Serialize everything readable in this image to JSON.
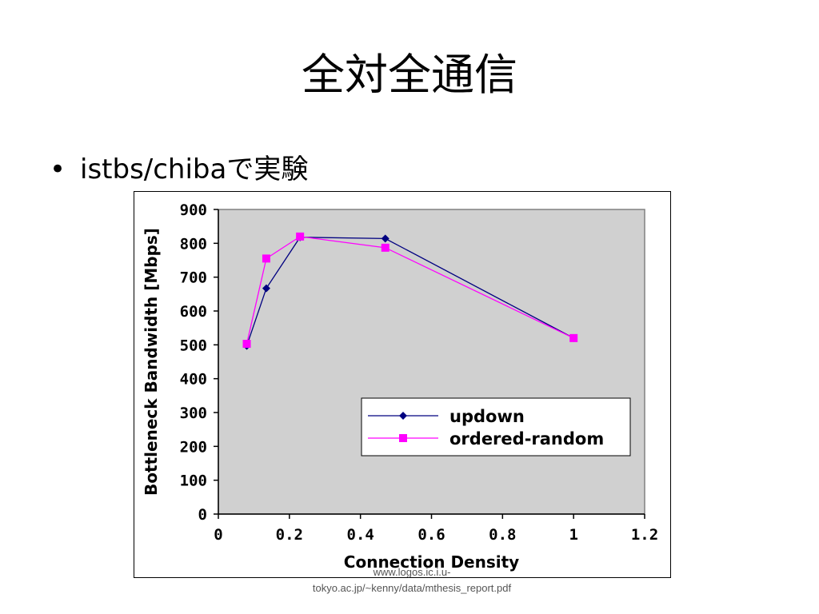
{
  "slide": {
    "title": "全対全通信",
    "bullet": "istbs/chibaで実験",
    "source_note": "www.logos.ic.i.u-tokyo.ac.jp/~kenny/data/mthesis_report.pdf"
  },
  "chart_data": {
    "type": "line",
    "xlabel": "Connection Density",
    "ylabel": "Bottleneck Bandwidth [Mbps]",
    "xlim": [
      0,
      1.2
    ],
    "ylim": [
      0,
      900
    ],
    "x_ticks": [
      "0",
      "0.2",
      "0.4",
      "0.6",
      "0.8",
      "1",
      "1.2"
    ],
    "y_ticks": [
      "0",
      "100",
      "200",
      "300",
      "400",
      "500",
      "600",
      "700",
      "800",
      "900"
    ],
    "grid": false,
    "legend_position": "lower-right",
    "plot_background": "#d0d0d0",
    "series": [
      {
        "name": "updown",
        "color": "#000080",
        "marker": "diamond",
        "points": [
          {
            "x": 0.08,
            "y": 497
          },
          {
            "x": 0.135,
            "y": 667
          },
          {
            "x": 0.23,
            "y": 818
          },
          {
            "x": 0.47,
            "y": 814
          },
          {
            "x": 1.0,
            "y": 520
          }
        ]
      },
      {
        "name": "ordered-random",
        "color": "#ff00ff",
        "marker": "square",
        "points": [
          {
            "x": 0.08,
            "y": 503
          },
          {
            "x": 0.135,
            "y": 755
          },
          {
            "x": 0.23,
            "y": 820
          },
          {
            "x": 0.47,
            "y": 787
          },
          {
            "x": 1.0,
            "y": 520
          }
        ]
      }
    ]
  }
}
